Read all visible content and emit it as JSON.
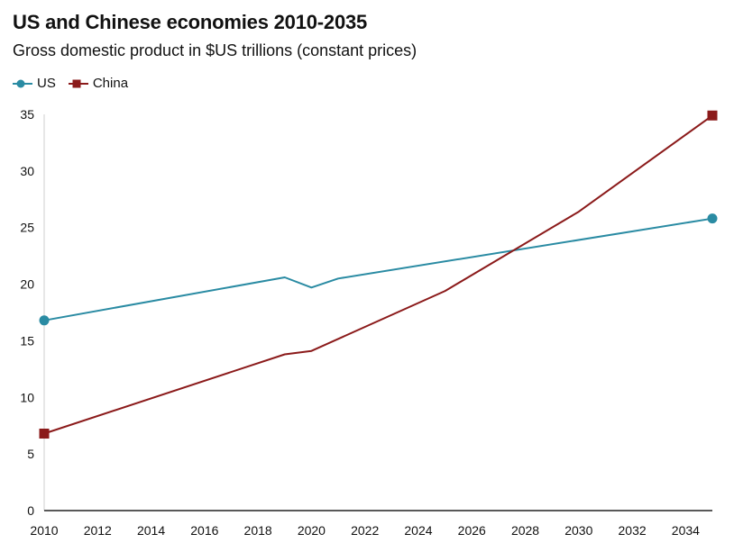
{
  "chart_data": {
    "type": "line",
    "title": "US and Chinese economies 2010-2035",
    "subtitle": "Gross domestic product in $US trillions (constant prices)",
    "xlabel": "",
    "ylabel": "",
    "xlim": [
      2010,
      2035
    ],
    "ylim": [
      0,
      35
    ],
    "x_ticks": [
      2010,
      2012,
      2014,
      2016,
      2018,
      2020,
      2022,
      2024,
      2026,
      2028,
      2030,
      2032,
      2034
    ],
    "y_ticks": [
      0,
      5,
      10,
      15,
      20,
      25,
      30,
      35
    ],
    "grid": false,
    "legend_position": "top-left",
    "series": [
      {
        "name": "US",
        "color": "#2a8ba3",
        "marker": "circle",
        "x": [
          2010,
          2019,
          2020,
          2021,
          2035
        ],
        "values": [
          16.8,
          20.6,
          19.7,
          20.5,
          25.8
        ]
      },
      {
        "name": "China",
        "color": "#8b1a1a",
        "marker": "square",
        "x": [
          2010,
          2019,
          2020,
          2025,
          2030,
          2035
        ],
        "values": [
          6.8,
          13.8,
          14.1,
          19.4,
          26.4,
          34.9
        ]
      }
    ]
  }
}
